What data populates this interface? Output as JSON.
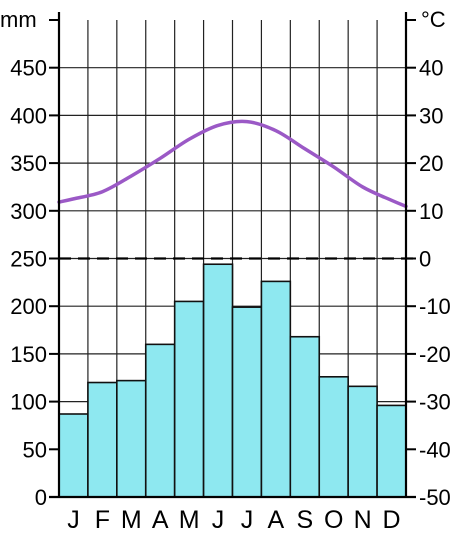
{
  "chart_data": {
    "type": "bar",
    "title": "",
    "xlabel": "",
    "categories": [
      "J",
      "F",
      "M",
      "A",
      "M",
      "J",
      "J",
      "A",
      "S",
      "O",
      "N",
      "D"
    ],
    "precipitation": {
      "unit": "mm",
      "values": [
        87,
        120,
        122,
        160,
        205,
        244,
        199,
        226,
        168,
        126,
        116,
        96
      ],
      "ylim": [
        0,
        500
      ],
      "ticks": [
        0,
        50,
        100,
        150,
        200,
        250,
        300,
        350,
        400,
        450
      ],
      "color": "#8ee8f0"
    },
    "temperature": {
      "unit": "°C",
      "type": "line",
      "values": [
        12.5,
        14,
        17.3,
        21,
        25,
        27.9,
        28.7,
        26.8,
        23,
        19.2,
        15,
        12.2
      ],
      "ylim": [
        -50,
        50
      ],
      "ticks": [
        -50,
        -40,
        -30,
        -20,
        -10,
        0,
        10,
        20,
        30,
        40
      ],
      "color": "#9b59c6"
    },
    "zero_line": "dashed",
    "grid": true
  }
}
